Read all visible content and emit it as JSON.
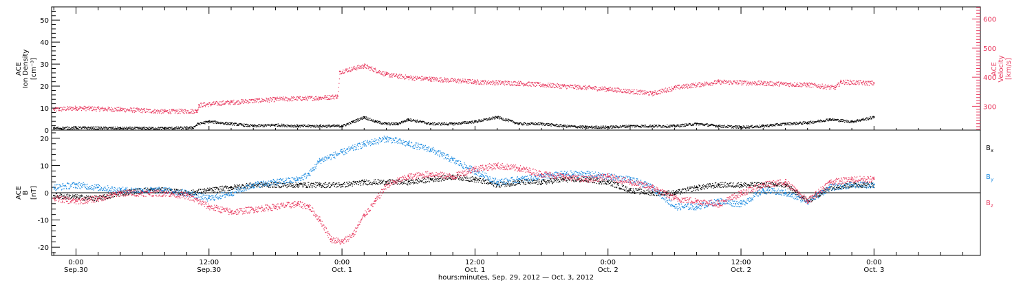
{
  "chart_data": [
    {
      "type": "scatter",
      "panel": "top",
      "ylabel_left": [
        "ACE",
        "Ion Density",
        "[cm⁻³]"
      ],
      "ylabel_right": [
        "ACE",
        "Velocity",
        "[km/s]"
      ],
      "ylim_left": [
        0,
        56
      ],
      "ylim_right": [
        218,
        642
      ],
      "yticks_left": [
        "0",
        "10",
        "20",
        "30",
        "40",
        "50"
      ],
      "yticks_right": [
        "300",
        "400",
        "500",
        "600"
      ],
      "colors": {
        "density": "#000000",
        "velocity": "#e8385e"
      },
      "series": [
        {
          "name": "Ion Density",
          "axis": "left",
          "x": [
            -2,
            0,
            4,
            8,
            10.5,
            11,
            12,
            14,
            16,
            18,
            20,
            22,
            24,
            25,
            26,
            27,
            28,
            29,
            30,
            32,
            34,
            36,
            38,
            40,
            42,
            44,
            46,
            48,
            50,
            52,
            54,
            56,
            58,
            60,
            62,
            64,
            66,
            68,
            70,
            72
          ],
          "y": [
            1,
            1.2,
            1,
            1,
            1.2,
            3,
            4,
            3,
            2,
            2.5,
            2,
            2,
            2,
            4,
            6,
            4,
            3,
            3,
            5,
            3,
            3,
            4,
            6,
            3,
            3,
            2,
            1.5,
            1.5,
            2,
            2,
            2,
            3,
            2,
            1.5,
            2,
            3,
            3.5,
            5,
            4,
            6
          ]
        },
        {
          "name": "Velocity",
          "axis": "right",
          "x": [
            -2,
            0,
            4,
            8,
            10.9,
            11.1,
            14,
            18,
            22,
            23.6,
            23.8,
            26,
            28,
            30,
            32,
            36,
            40,
            44,
            48,
            52,
            54,
            58,
            62,
            66,
            68.5,
            69,
            72
          ],
          "y": [
            290,
            295,
            290,
            283,
            285,
            305,
            315,
            325,
            330,
            335,
            420,
            440,
            410,
            400,
            395,
            385,
            380,
            370,
            360,
            345,
            365,
            385,
            380,
            375,
            365,
            385,
            380
          ]
        }
      ]
    },
    {
      "type": "scatter",
      "panel": "bottom",
      "ylabel_left": [
        "ACE",
        "B",
        "[nT]"
      ],
      "ylim": [
        -23,
        23
      ],
      "yticks": [
        "-20",
        "-10",
        "0",
        "10",
        "20"
      ],
      "zero_line": true,
      "colors": {
        "Bx": "#000000",
        "By": "#1a8ae0",
        "Bz": "#e8385e"
      },
      "legend": [
        {
          "label": "B",
          "sub": "x",
          "color": "#000000"
        },
        {
          "label": "B",
          "sub": "y",
          "color": "#1a8ae0"
        },
        {
          "label": "B",
          "sub": "z",
          "color": "#e8385e"
        }
      ],
      "series": [
        {
          "name": "Bx",
          "x": [
            -2,
            2,
            4,
            6,
            8,
            10,
            12,
            14,
            16,
            18,
            20,
            22,
            24,
            26,
            28,
            30,
            32,
            34,
            36,
            38,
            40,
            42,
            44,
            46,
            48,
            50,
            52,
            54,
            56,
            58,
            60,
            62,
            64,
            66,
            68,
            70,
            72
          ],
          "y": [
            -1,
            -2,
            0,
            1,
            1,
            0,
            1,
            2,
            3,
            3,
            3,
            3,
            3,
            4,
            4,
            4,
            5,
            6,
            5,
            3,
            4,
            4,
            5,
            5,
            4,
            1,
            0,
            0,
            2,
            3,
            3,
            3,
            3,
            -3,
            2,
            3,
            3
          ]
        },
        {
          "name": "By",
          "x": [
            -2,
            0,
            2,
            4,
            6,
            8,
            10,
            12,
            14,
            16,
            18,
            20,
            21,
            22,
            24,
            26,
            28,
            30,
            32,
            34,
            36,
            38,
            40,
            42,
            44,
            46,
            48,
            50,
            52,
            54,
            56,
            58,
            60,
            62,
            64,
            66,
            68,
            70,
            72
          ],
          "y": [
            2,
            3,
            2,
            1,
            1,
            1,
            0,
            -2,
            0,
            3,
            4,
            5,
            7,
            12,
            15,
            18,
            20,
            18,
            16,
            12,
            8,
            4,
            5,
            6,
            7,
            7,
            6,
            5,
            2,
            -5,
            -5,
            -3,
            -4,
            1,
            0,
            -3,
            2,
            3,
            3
          ]
        },
        {
          "name": "Bz",
          "x": [
            -2,
            0,
            2,
            4,
            6,
            8,
            10,
            12,
            14,
            16,
            18,
            20,
            21,
            22,
            23,
            24,
            25,
            26,
            27,
            28,
            30,
            32,
            34,
            36,
            38,
            40,
            42,
            44,
            46,
            48,
            50,
            52,
            54,
            56,
            58,
            60,
            62,
            64,
            66,
            68,
            70,
            72
          ],
          "y": [
            -2,
            -3,
            -2,
            0,
            0,
            0,
            -1,
            -5,
            -7,
            -6,
            -5,
            -4,
            -5,
            -10,
            -17,
            -18,
            -15,
            -8,
            -3,
            3,
            6,
            7,
            6,
            9,
            10,
            9,
            7,
            6,
            5,
            6,
            4,
            2,
            -2,
            -3,
            -4,
            0,
            3,
            4,
            -3,
            4,
            5,
            5
          ]
        }
      ]
    }
  ],
  "xaxis": {
    "ticks": [
      {
        "x": 0,
        "time": "0:00",
        "date": "Sep.30"
      },
      {
        "x": 12,
        "time": "12:00",
        "date": "Sep.30"
      },
      {
        "x": 24,
        "time": "0:00",
        "date": "Oct. 1"
      },
      {
        "x": 36,
        "time": "12:00",
        "date": "Oct. 1"
      },
      {
        "x": 48,
        "time": "0:00",
        "date": "Oct. 2"
      },
      {
        "x": 60,
        "time": "12:00",
        "date": "Oct. 2"
      },
      {
        "x": 72,
        "time": "0:00",
        "date": "Oct. 3"
      }
    ],
    "xlim": [
      -2.2,
      81.6
    ],
    "label": "hours:minutes, Sep. 29, 2012 — Oct.  3, 2012"
  }
}
